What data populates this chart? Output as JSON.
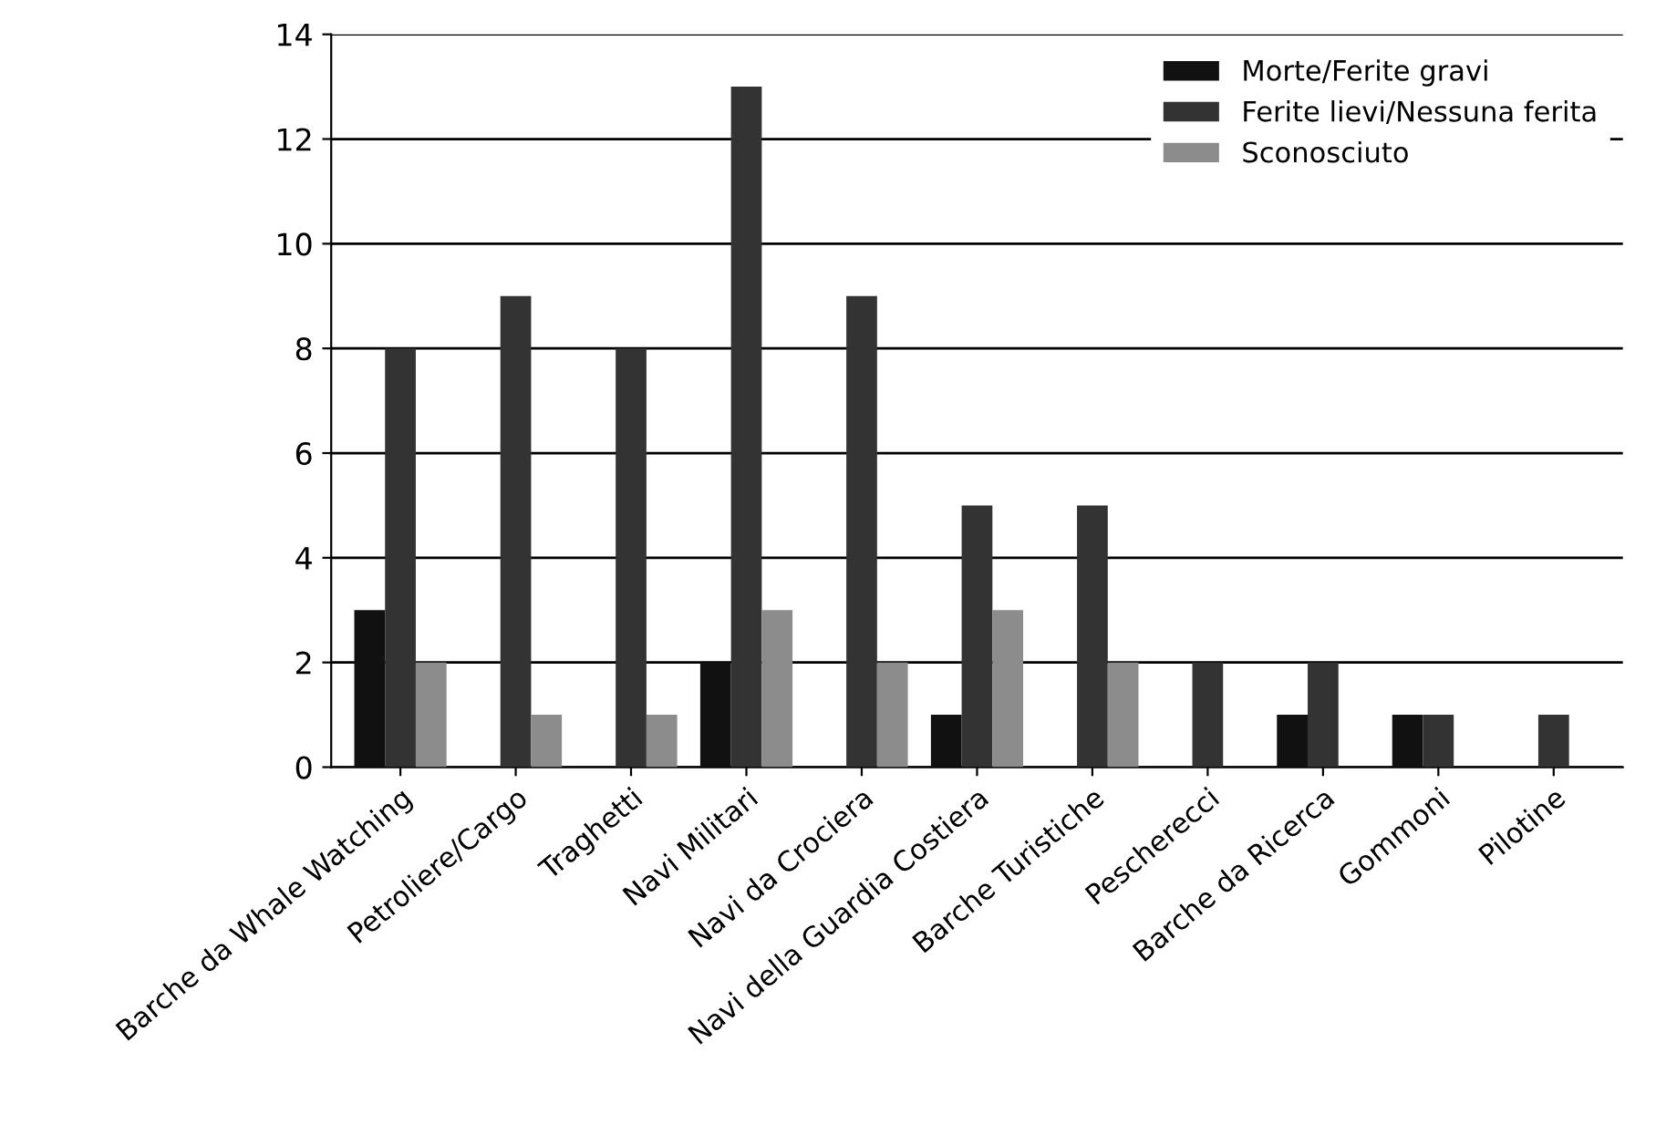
{
  "chart_data": {
    "type": "bar",
    "categories": [
      "Barche da Whale Watching",
      "Petroliere/Cargo",
      "Traghetti",
      "Navi Militari",
      "Navi da Crociera",
      "Navi della Guardia Costiera",
      "Barche Turistiche",
      "Pescherecci",
      "Barche da Ricerca",
      "Gommoni",
      "Pilotine"
    ],
    "series": [
      {
        "name": "Morte/Ferite gravi",
        "color": "#111111",
        "values": [
          3,
          0,
          0,
          2,
          0,
          1,
          0,
          0,
          1,
          1,
          0
        ]
      },
      {
        "name": "Ferite lievi/Nessuna ferita",
        "color": "#333333",
        "values": [
          8,
          9,
          8,
          13,
          9,
          5,
          5,
          2,
          2,
          1,
          1
        ]
      },
      {
        "name": "Sconosciuto",
        "color": "#8c8c8c",
        "values": [
          2,
          1,
          1,
          3,
          2,
          3,
          2,
          0,
          0,
          0,
          0
        ]
      }
    ],
    "ylim": [
      0,
      14
    ],
    "yticks": [
      0,
      2,
      4,
      6,
      8,
      10,
      12,
      14
    ],
    "grid": "y",
    "legend": "top right"
  }
}
